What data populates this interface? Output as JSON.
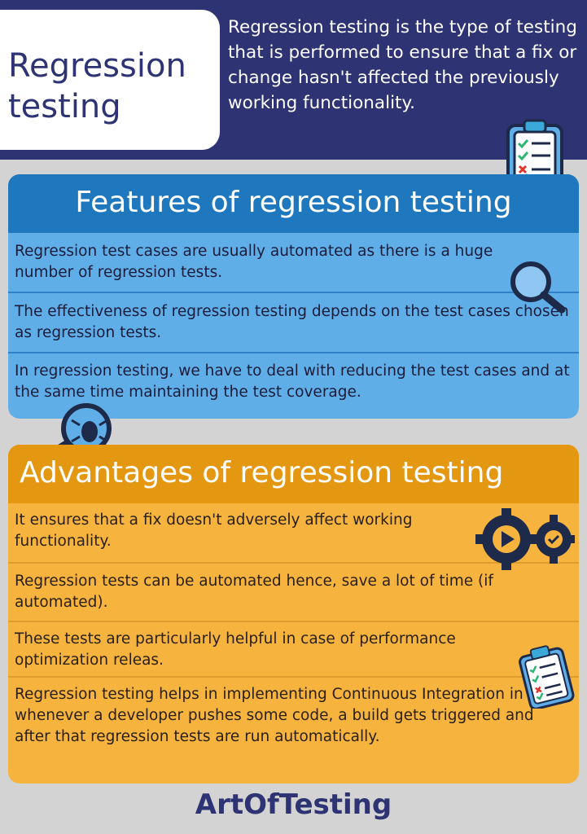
{
  "header": {
    "title_line1": "Regression",
    "title_line2": "testing",
    "intro": "Regression testing is the type of testing that is performed to ensure that a fix or change hasn't affected the previously working functionality."
  },
  "features": {
    "heading": "Features of regression testing",
    "items": [
      "Regression test cases are usually automated as there is a huge number of regression tests.",
      "The effectiveness of regression testing depends on the test cases chosen as regression tests.",
      "In regression testing, we have to deal with reducing the test cases and at the same time maintaining the test coverage."
    ]
  },
  "advantages": {
    "heading": "Advantages of regression testing",
    "items": [
      "It ensures that a fix doesn't adversely affect working functionality.",
      "Regression tests can be automated hence, save a lot of time (if automated).",
      "These tests are particularly helpful in case of performance optimization releas.",
      "Regression testing helps in implementing Continuous Integration in which whenever a developer pushes some code, a build gets triggered and after that regression tests are run automatically."
    ]
  },
  "brand": "ArtOfTesting",
  "icons": [
    "clipboard-checklist-icon",
    "magnifier-icon",
    "bug-magnifier-icon",
    "gears-icon",
    "clipboard-small-icon"
  ],
  "colors": {
    "navy": "#2d3373",
    "feature_header": "#1f78bd",
    "feature_body": "#5faee8",
    "advantage_header": "#e49710",
    "advantage_body": "#f6b33e",
    "background": "#d3d3d3"
  }
}
